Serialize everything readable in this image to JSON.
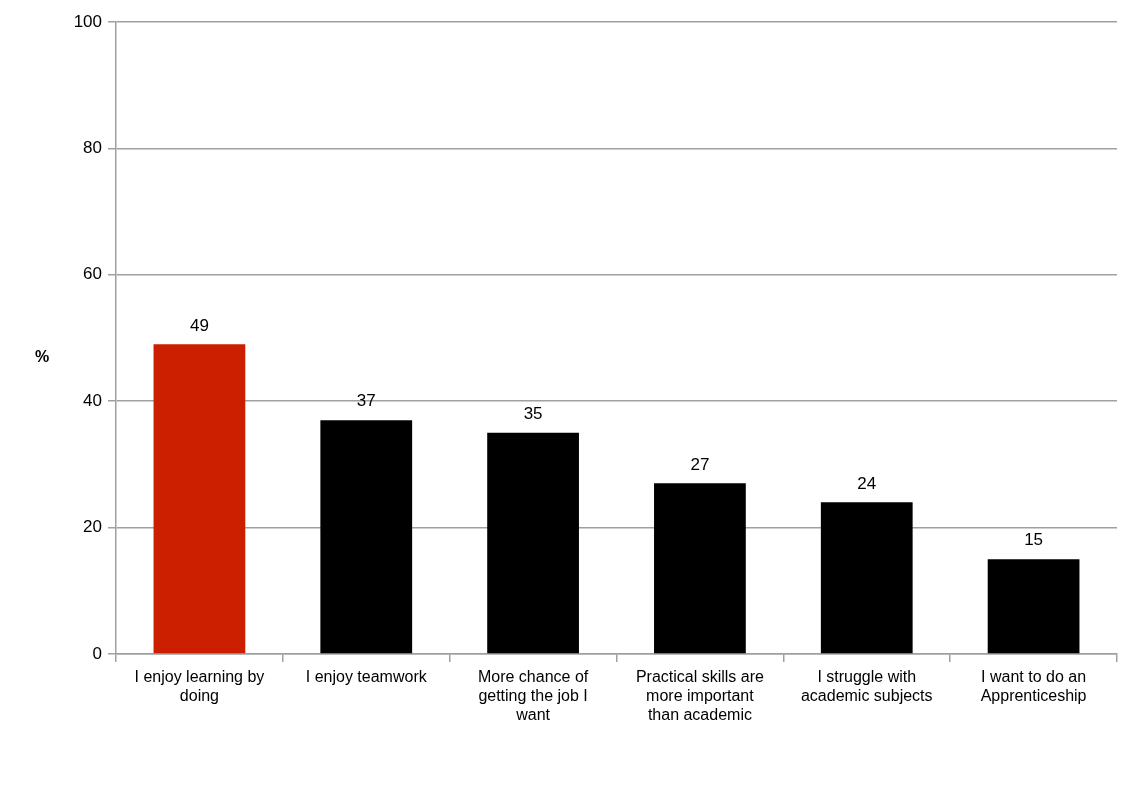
{
  "chart_data": {
    "type": "bar",
    "ylabel": "%",
    "categories": [
      "I enjoy learning by doing",
      "I enjoy teamwork",
      "More chance of getting the job I want",
      "Practical skills are more important than academic",
      "I struggle with academic subjects",
      "I want to do an Apprenticeship"
    ],
    "values": [
      49,
      37,
      35,
      27,
      24,
      15
    ],
    "colors": [
      "#cc1f00",
      "#000000",
      "#000000",
      "#000000",
      "#000000",
      "#000000"
    ],
    "ylim": [
      0,
      100
    ],
    "yticks": [
      0,
      20,
      40,
      60,
      80,
      100
    ],
    "grid": "y",
    "data_labels": true
  }
}
